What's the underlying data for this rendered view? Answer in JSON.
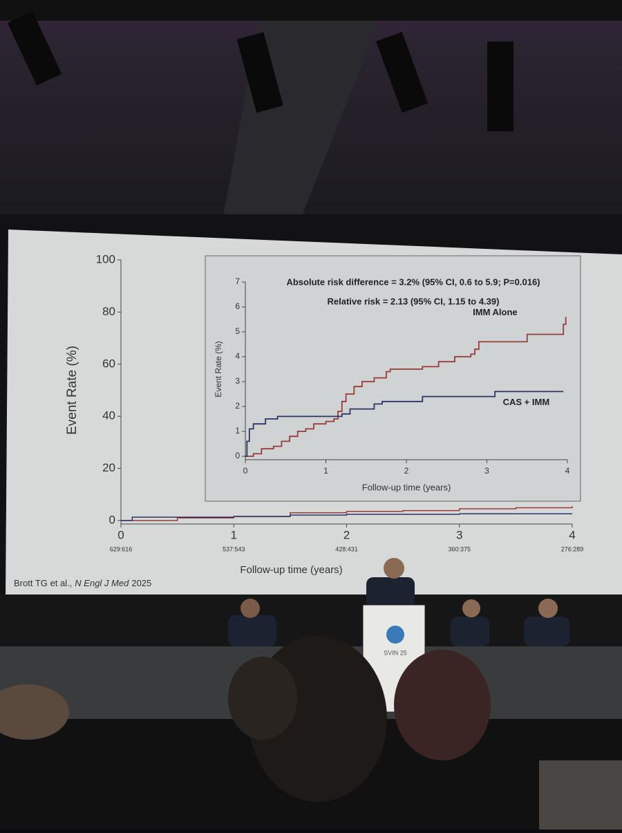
{
  "chart_data": [
    {
      "type": "line",
      "y_label": "Event Rate (%)",
      "x_label": "Follow-up time (years)",
      "xlim": [
        0,
        4
      ],
      "xticks": [
        0,
        1,
        2,
        3,
        4
      ],
      "ylim": [
        0,
        100
      ],
      "yticks": [
        0,
        20,
        40,
        60,
        80,
        100
      ],
      "at_risk": [
        "629:616",
        "537:543",
        "428:431",
        "360:375",
        "276:289"
      ],
      "step": true,
      "series": [
        {
          "color": "#9a3a3a",
          "x": [
            0,
            0.5,
            1,
            1.5,
            2,
            2.5,
            3,
            3.5,
            4
          ],
          "values": [
            0,
            1,
            1.5,
            3,
            3.5,
            3.8,
            4.5,
            4.9,
            5.5
          ]
        },
        {
          "color": "#2a3566",
          "x": [
            0,
            0.1,
            1,
            1.5,
            2,
            3,
            4
          ],
          "values": [
            0,
            1.3,
            1.6,
            2.1,
            2.4,
            2.6,
            2.6
          ]
        }
      ],
      "citation": {
        "authors": "Brott TG et al.,",
        "journal": "N Engl J Med",
        "year": "2025"
      }
    },
    {
      "type": "line",
      "y_label": "Event Rate (%)",
      "x_label": "Follow-up time (years)",
      "annotations": [
        "Absolute risk difference = 3.2% (95% CI, 0.6 to 5.9; P=0.016)",
        "Relative risk = 2.13 (95% CI, 1.15 to 4.39)"
      ],
      "xlim": [
        0,
        4
      ],
      "xticks": [
        0,
        1,
        2,
        3,
        4
      ],
      "ylim": [
        0,
        7
      ],
      "yticks": [
        0,
        1,
        2,
        3,
        4,
        5,
        6,
        7
      ],
      "step": true,
      "series": [
        {
          "name": "IMM Alone",
          "color": "#9a3a3a",
          "x": [
            0,
            0.1,
            0.2,
            0.35,
            0.45,
            0.55,
            0.65,
            0.75,
            0.85,
            1.0,
            1.1,
            1.15,
            1.2,
            1.25,
            1.35,
            1.45,
            1.6,
            1.75,
            1.8,
            2.2,
            2.4,
            2.6,
            2.8,
            2.85,
            2.9,
            3.5,
            3.95,
            3.98
          ],
          "values": [
            0,
            0.1,
            0.3,
            0.4,
            0.6,
            0.8,
            1.0,
            1.1,
            1.3,
            1.4,
            1.5,
            1.8,
            2.2,
            2.5,
            2.8,
            3.0,
            3.15,
            3.4,
            3.5,
            3.6,
            3.8,
            4.0,
            4.1,
            4.3,
            4.6,
            4.9,
            5.3,
            5.6
          ]
        },
        {
          "name": "CAS + IMM",
          "color": "#2a3566",
          "x": [
            0,
            0.02,
            0.05,
            0.1,
            0.25,
            0.4,
            1.05,
            1.2,
            1.3,
            1.6,
            1.7,
            2.2,
            3.1,
            3.95
          ],
          "values": [
            0,
            0.6,
            1.1,
            1.3,
            1.5,
            1.6,
            1.6,
            1.7,
            1.9,
            2.1,
            2.2,
            2.4,
            2.6,
            2.6
          ]
        }
      ]
    }
  ],
  "scene": {
    "podium_logo": "SVIN 25"
  }
}
